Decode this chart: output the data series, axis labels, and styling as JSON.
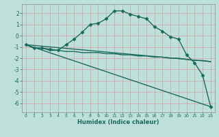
{
  "xlabel": "Humidex (Indice chaleur)",
  "xlim": [
    -0.5,
    23.5
  ],
  "ylim": [
    -6.8,
    2.8
  ],
  "yticks": [
    2,
    1,
    0,
    -1,
    -2,
    -3,
    -4,
    -5,
    -6
  ],
  "xticks": [
    0,
    1,
    2,
    3,
    4,
    5,
    6,
    7,
    8,
    9,
    10,
    11,
    12,
    13,
    14,
    15,
    16,
    17,
    18,
    19,
    20,
    21,
    22,
    23
  ],
  "bg_color": "#bde0da",
  "line_color": "#1a6b5e",
  "grid_color": "#e8e8e8",
  "line1_x": [
    0,
    1,
    2,
    3,
    4,
    5,
    6,
    7,
    8,
    9,
    10,
    11,
    12,
    13,
    14,
    15,
    16,
    17,
    18,
    19,
    20,
    21,
    22,
    23
  ],
  "line1_y": [
    -0.8,
    -1.1,
    -1.1,
    -1.2,
    -1.3,
    -0.8,
    -0.3,
    0.3,
    1.0,
    1.1,
    1.5,
    2.2,
    2.2,
    1.9,
    1.7,
    1.5,
    0.8,
    0.4,
    -0.1,
    -0.3,
    -1.7,
    -2.4,
    -3.5,
    -6.3
  ],
  "line2_x": [
    0,
    1,
    2,
    3,
    4,
    5,
    6,
    7,
    8,
    9,
    10,
    11,
    12,
    13,
    14,
    15,
    16,
    17,
    18,
    19,
    20,
    21,
    22,
    23
  ],
  "line2_y": [
    -0.8,
    -1.1,
    -1.1,
    -1.3,
    -1.3,
    -1.4,
    -1.4,
    -1.5,
    -1.5,
    -1.5,
    -1.6,
    -1.6,
    -1.7,
    -1.7,
    -1.8,
    -1.8,
    -1.9,
    -1.9,
    -2.0,
    -2.0,
    -2.1,
    -2.2,
    -2.2,
    -2.3
  ],
  "line3_x": [
    0,
    23
  ],
  "line3_y": [
    -0.8,
    -6.3
  ],
  "line4_x": [
    0,
    23
  ],
  "line4_y": [
    -0.8,
    -2.3
  ]
}
